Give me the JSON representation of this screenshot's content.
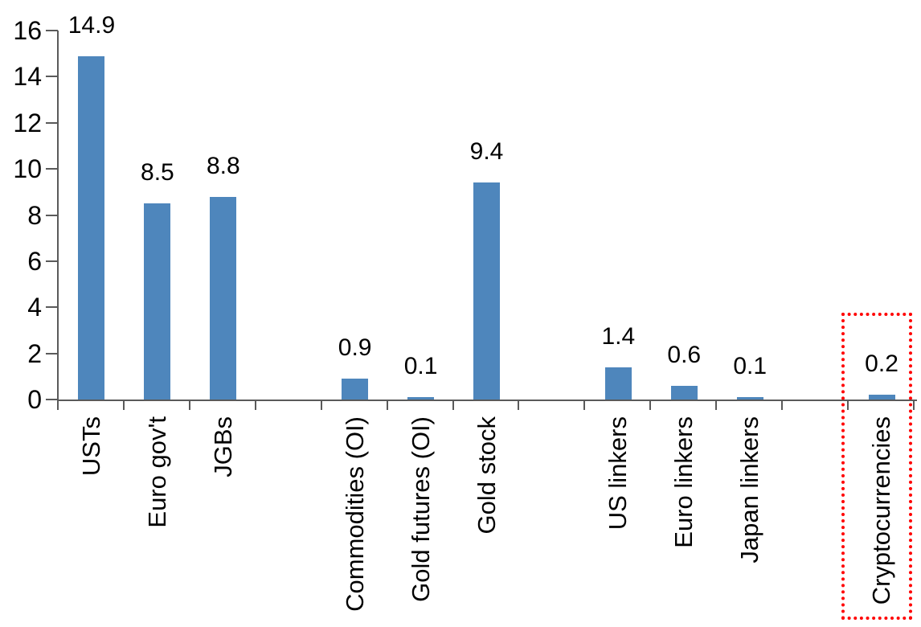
{
  "chart_data": {
    "type": "bar",
    "title": "",
    "xlabel": "",
    "ylabel": "",
    "categories": [
      "USTs",
      "Euro gov't",
      "JGBs",
      "Commodities (OI)",
      "Gold futures (OI)",
      "Gold stock",
      "US linkers",
      "Euro linkers",
      "Japan linkers",
      "Cryptocurrencies"
    ],
    "values": [
      14.9,
      8.5,
      8.8,
      0.9,
      0.1,
      9.4,
      1.4,
      0.6,
      0.1,
      0.2
    ],
    "value_labels": [
      "14.9",
      "8.5",
      "8.8",
      "0.9",
      "0.1",
      "9.4",
      "1.4",
      "0.6",
      "0.1",
      "0.2"
    ],
    "slot_indices": [
      0,
      1,
      2,
      4,
      5,
      6,
      8,
      9,
      10,
      12
    ],
    "total_slots": 13,
    "ylim": [
      0,
      16
    ],
    "ytick_step": 2,
    "ytick_labels": [
      "0",
      "2",
      "4",
      "6",
      "8",
      "10",
      "12",
      "14",
      "16"
    ],
    "grid": false,
    "legend": "none",
    "colors": {
      "bar": "#4E86BC",
      "axis": "#5a5a5a",
      "text": "#000000",
      "highlight": "#FF0000"
    },
    "highlight": {
      "category": "Cryptocurrencies",
      "style": "red-dotted-box"
    }
  }
}
